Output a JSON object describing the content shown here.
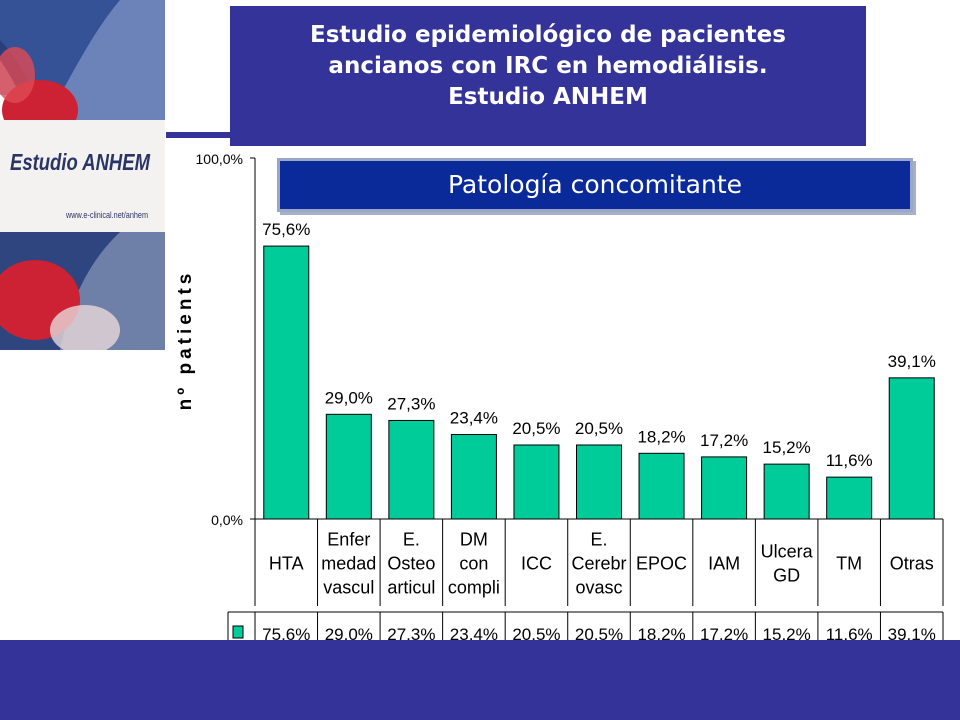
{
  "header": {
    "title_lines": [
      "Estudio epidemiológico de pacientes",
      "ancianos con IRC en hemodiálisis.",
      "Estudio ANHEM"
    ],
    "subtitle": "Patología concomitante"
  },
  "logo": {
    "text": "Estudio ANHEM",
    "url": "www.e-clinical.net/anhem"
  },
  "colors": {
    "header_bg": "#33339a",
    "subtitle_bg": "#0a2a9a",
    "bar": "#00cc99",
    "logo_red": "#cc2233"
  },
  "chart_data": {
    "type": "bar",
    "ylabel": "nº patients",
    "ylim": [
      0,
      100
    ],
    "y_ticks": [
      "0,0%",
      "100,0%"
    ],
    "categories": [
      [
        "HTA"
      ],
      [
        "Enfer",
        "medad",
        "vascul"
      ],
      [
        "E.",
        "Osteo",
        "articul"
      ],
      [
        "DM",
        "con",
        "compli"
      ],
      [
        "ICC"
      ],
      [
        "E.",
        "Cerebr",
        "ovasc"
      ],
      [
        "EPOC"
      ],
      [
        "IAM"
      ],
      [
        "Ulcera",
        "GD"
      ],
      [
        "TM"
      ],
      [
        "Otras"
      ]
    ],
    "values": [
      75.6,
      29.0,
      27.3,
      23.4,
      20.5,
      20.5,
      18.2,
      17.2,
      15.2,
      11.6,
      39.1
    ],
    "labels": [
      "75,6%",
      "29,0%",
      "27,3%",
      "23,4%",
      "20,5%",
      "20,5%",
      "18,2%",
      "17,2%",
      "15,2%",
      "11,6%",
      "39,1%"
    ]
  }
}
